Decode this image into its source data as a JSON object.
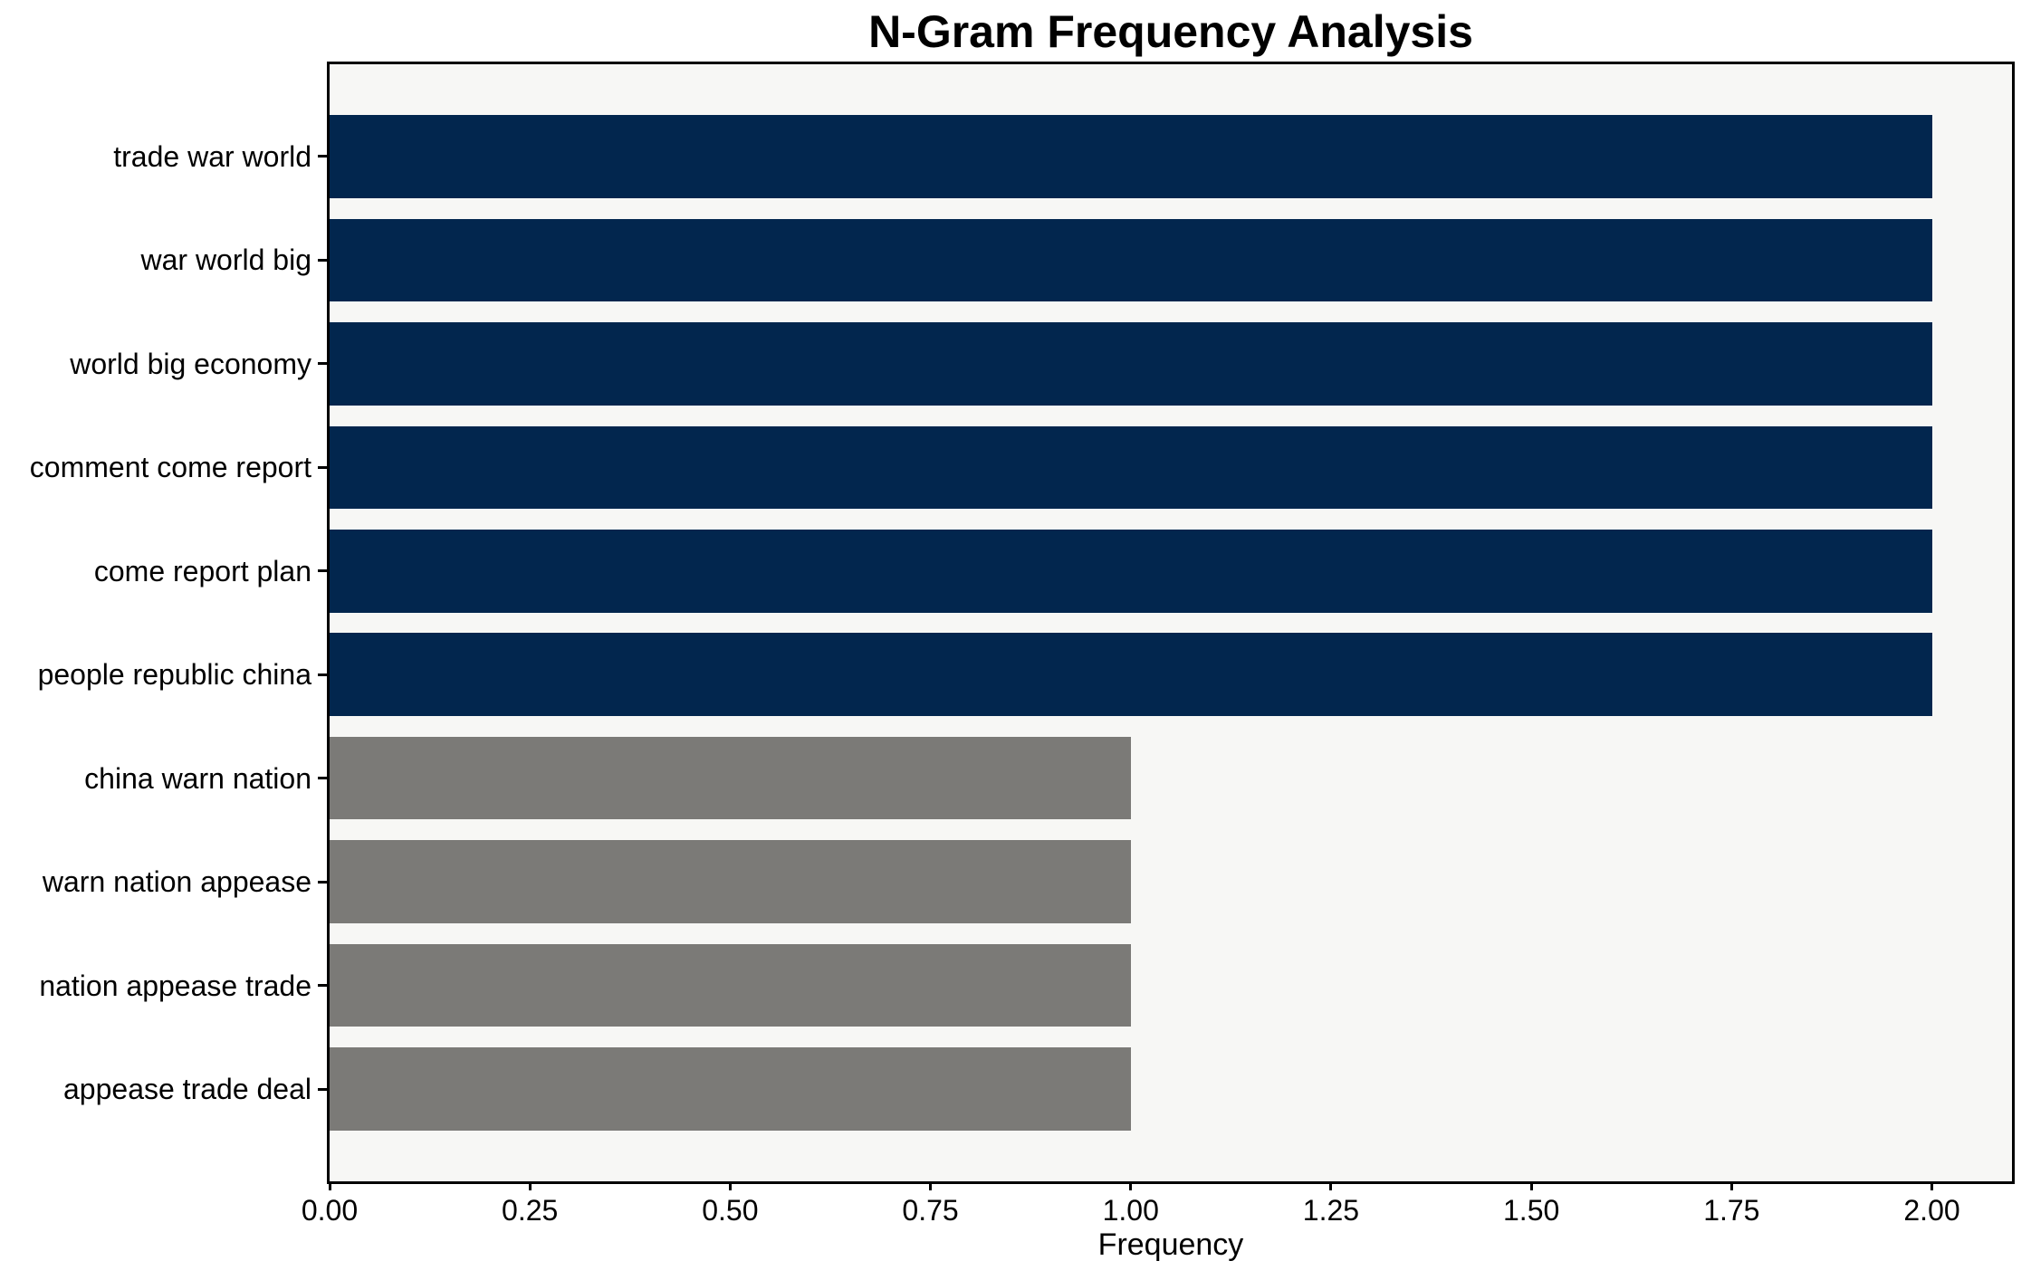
{
  "chart_data": {
    "type": "bar",
    "orientation": "horizontal",
    "title": "N-Gram Frequency Analysis",
    "xlabel": "Frequency",
    "ylabel": "",
    "categories": [
      "trade war world",
      "war world big",
      "world big economy",
      "comment come report",
      "come report plan",
      "people republic china",
      "china warn nation",
      "warn nation appease",
      "nation appease trade",
      "appease trade deal"
    ],
    "values": [
      2,
      2,
      2,
      2,
      2,
      2,
      1,
      1,
      1,
      1
    ],
    "bar_colors": [
      "#02264e",
      "#02264e",
      "#02264e",
      "#02264e",
      "#02264e",
      "#02264e",
      "#7b7a77",
      "#7b7a77",
      "#7b7a77",
      "#7b7a77"
    ],
    "x_tick_values": [
      0,
      0.25,
      0.5,
      0.75,
      1.0,
      1.25,
      1.5,
      1.75,
      2.0
    ],
    "x_tick_labels": [
      "0.00",
      "0.25",
      "0.50",
      "0.75",
      "1.00",
      "1.25",
      "1.50",
      "1.75",
      "2.00"
    ],
    "xlim": [
      0,
      2.1
    ],
    "bar_width_fraction": 0.8,
    "grid": false,
    "legend": null,
    "colors": {
      "frequent_bar": "#02264e",
      "infrequent_bar": "#7b7a77",
      "plot_background": "#f7f7f5",
      "figure_background": "#ffffff",
      "axis": "#000000"
    }
  }
}
